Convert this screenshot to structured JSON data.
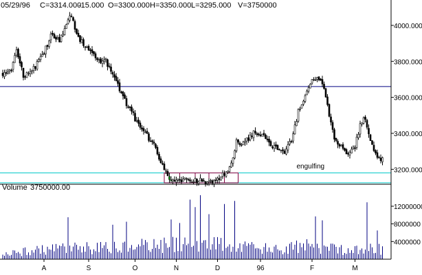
{
  "chart_data": [
    {
      "type": "candlestick",
      "header": {
        "date": "05/29/96",
        "close": "C=3314.000",
        "change": "-15.000",
        "open": "O=3300.000",
        "high": "H=3350.000",
        "low": "L=3295.000",
        "volume": "V=3750000"
      },
      "change_color": "#ff0000",
      "y_ticks": [
        "4000.000",
        "3800.000",
        "3600.000",
        "3400.000",
        "3200.000"
      ],
      "y_tick_values": [
        4000,
        3800,
        3600,
        3400,
        3200
      ],
      "ylim": [
        3140,
        4080
      ],
      "x_ticks": [
        "A",
        "S",
        "O",
        "N",
        "D",
        "96",
        "F",
        "M"
      ],
      "x_tick_bar_index": [
        24,
        50,
        77,
        101,
        125,
        150,
        180,
        205
      ],
      "bar_count": 222,
      "close_path": [
        [
          0,
          3730
        ],
        [
          5,
          3760
        ],
        [
          8,
          3860
        ],
        [
          12,
          3720
        ],
        [
          18,
          3760
        ],
        [
          24,
          3850
        ],
        [
          28,
          3940
        ],
        [
          33,
          3920
        ],
        [
          36,
          3970
        ],
        [
          38,
          4030
        ],
        [
          40,
          4060
        ],
        [
          42,
          3990
        ],
        [
          45,
          3920
        ],
        [
          50,
          3860
        ],
        [
          55,
          3810
        ],
        [
          60,
          3800
        ],
        [
          64,
          3730
        ],
        [
          68,
          3650
        ],
        [
          72,
          3560
        ],
        [
          76,
          3500
        ],
        [
          80,
          3430
        ],
        [
          84,
          3390
        ],
        [
          88,
          3330
        ],
        [
          92,
          3250
        ],
        [
          95,
          3190
        ],
        [
          98,
          3140
        ],
        [
          102,
          3140
        ],
        [
          108,
          3140
        ],
        [
          114,
          3140
        ],
        [
          120,
          3130
        ],
        [
          125,
          3140
        ],
        [
          130,
          3190
        ],
        [
          133,
          3230
        ],
        [
          136,
          3350
        ],
        [
          140,
          3340
        ],
        [
          146,
          3400
        ],
        [
          152,
          3390
        ],
        [
          156,
          3340
        ],
        [
          160,
          3310
        ],
        [
          164,
          3290
        ],
        [
          168,
          3360
        ],
        [
          172,
          3520
        ],
        [
          176,
          3600
        ],
        [
          180,
          3700
        ],
        [
          184,
          3700
        ],
        [
          187,
          3640
        ],
        [
          190,
          3500
        ],
        [
          193,
          3360
        ],
        [
          197,
          3320
        ],
        [
          201,
          3280
        ],
        [
          205,
          3330
        ],
        [
          208,
          3440
        ],
        [
          210,
          3500
        ],
        [
          213,
          3400
        ],
        [
          216,
          3290
        ],
        [
          219,
          3250
        ],
        [
          222,
          3260
        ]
      ],
      "volume_path": [
        [
          0,
          1500000
        ],
        [
          30,
          2500000
        ],
        [
          60,
          2800000
        ],
        [
          100,
          3600000
        ],
        [
          115,
          4500000
        ],
        [
          130,
          3400000
        ],
        [
          160,
          2300000
        ],
        [
          175,
          3200000
        ],
        [
          200,
          2700000
        ],
        [
          222,
          2400000
        ]
      ],
      "volume_spikes": [
        [
          38,
          9500000
        ],
        [
          64,
          7800000
        ],
        [
          72,
          8500000
        ],
        [
          98,
          9000000
        ],
        [
          103,
          8200000
        ],
        [
          109,
          13500000
        ],
        [
          112,
          11800000
        ],
        [
          115,
          14500000
        ],
        [
          120,
          10200000
        ],
        [
          129,
          12500000
        ],
        [
          135,
          13200000
        ],
        [
          182,
          9700000
        ],
        [
          186,
          8800000
        ],
        [
          212,
          12900000
        ],
        [
          218,
          6500000
        ]
      ],
      "resistance_level": 3660,
      "support_levels": [
        3180,
        3125
      ],
      "box": {
        "start_index": 94,
        "end_index": 137,
        "low": 3125,
        "high": 3180
      },
      "annotations": [
        {
          "text": "engulfing",
          "index": 171,
          "value": 3205
        }
      ],
      "colors": {
        "candle": "#000000",
        "resistance_line": "#000080",
        "support_line": "#00c8c8",
        "box": "#800040",
        "highlight": "#00a000"
      }
    },
    {
      "type": "bar",
      "title": "Volume",
      "title_value": "3750000.00",
      "y_ticks": [
        "12000000",
        "8000000",
        "4000000"
      ],
      "y_tick_values": [
        12000000,
        8000000,
        4000000
      ],
      "ylim": [
        0,
        14800000
      ],
      "bar_color": "#000080"
    }
  ]
}
